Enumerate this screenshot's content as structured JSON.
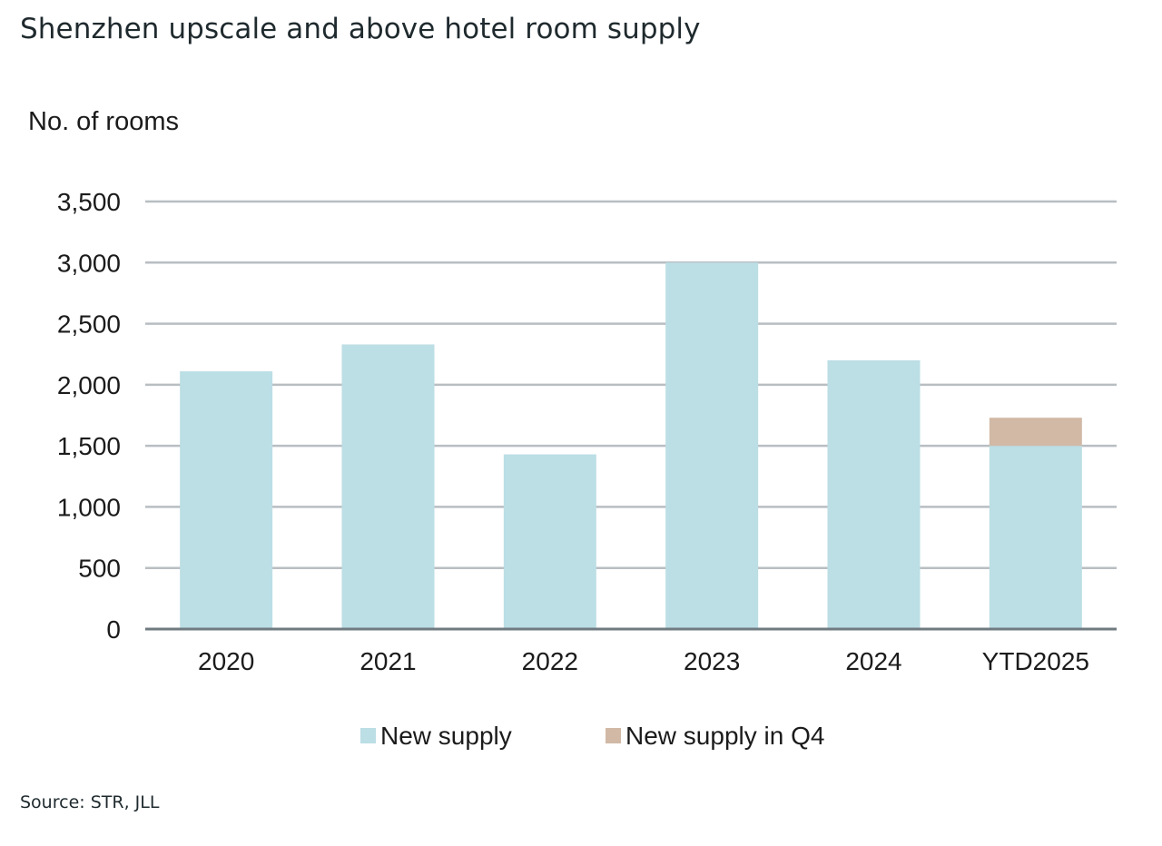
{
  "chart_data": {
    "type": "bar",
    "stacked": true,
    "title": "Shenzhen upscale and above hotel room supply",
    "xlabel": "",
    "ylabel": "No. of rooms",
    "categories": [
      "2020",
      "2021",
      "2022",
      "2023",
      "2024",
      "YTD2025"
    ],
    "series": [
      {
        "name": "New supply",
        "color": "#bcdee5",
        "values": [
          2110,
          2330,
          1430,
          3000,
          2200,
          1500
        ]
      },
      {
        "name": "New supply in Q4",
        "color": "#d1b9a6",
        "values": [
          0,
          0,
          0,
          0,
          0,
          230
        ]
      }
    ],
    "ylim": [
      0,
      3500
    ],
    "yticks": [
      0,
      500,
      1000,
      1500,
      2000,
      2500,
      3000,
      3500
    ],
    "ytick_labels": [
      "0",
      "500",
      "1,000",
      "1,500",
      "2,000",
      "2,500",
      "3,000",
      "3,500"
    ],
    "grid": true,
    "legend_position": "bottom",
    "source": "Source: STR, JLL"
  }
}
